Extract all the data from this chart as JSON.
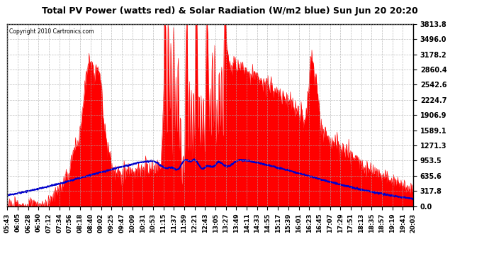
{
  "title": "Total PV Power (watts red) & Solar Radiation (W/m2 blue) Sun Jun 20 20:20",
  "copyright": "Copyright 2010 Cartronics.com",
  "bg_color": "#ffffff",
  "plot_bg_color": "#ffffff",
  "grid_color": "#aaaaaa",
  "red_color": "#ff0000",
  "blue_color": "#0000cc",
  "yticks": [
    0.0,
    317.8,
    635.6,
    953.5,
    1271.3,
    1589.1,
    1906.9,
    2224.7,
    2542.6,
    2860.4,
    3178.2,
    3496.0,
    3813.8
  ],
  "ylim": [
    0,
    3813.8
  ],
  "xtick_labels": [
    "05:43",
    "06:05",
    "06:28",
    "06:50",
    "07:12",
    "07:34",
    "07:56",
    "08:18",
    "08:40",
    "09:02",
    "09:25",
    "09:47",
    "10:09",
    "10:31",
    "10:53",
    "11:15",
    "11:37",
    "11:59",
    "12:21",
    "12:43",
    "13:05",
    "13:27",
    "13:49",
    "14:11",
    "14:33",
    "14:55",
    "15:17",
    "15:39",
    "16:01",
    "16:23",
    "16:45",
    "17:07",
    "17:29",
    "17:51",
    "18:13",
    "18:35",
    "18:57",
    "19:19",
    "19:41",
    "20:03"
  ],
  "n_points": 870
}
